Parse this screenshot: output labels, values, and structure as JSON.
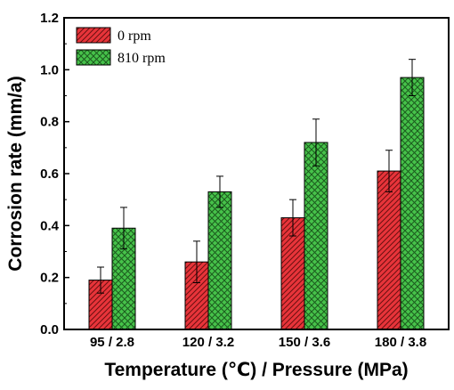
{
  "chart_data": {
    "type": "bar",
    "title": "",
    "xlabel": "Temperature (℃) / Pressure (MPa)",
    "ylabel": "Corrosion rate (mm/a)",
    "categories": [
      "95 / 2.8",
      "120 / 3.2",
      "150 / 3.6",
      "180 / 3.8"
    ],
    "ylim": [
      0.0,
      1.2
    ],
    "yticks": [
      "0.0",
      "0.2",
      "0.4",
      "0.6",
      "0.8",
      "1.0",
      "1.2"
    ],
    "series": [
      {
        "name": "0 rpm",
        "color": "#e8343a",
        "pattern": "diagonal-hatch",
        "values": [
          0.19,
          0.26,
          0.43,
          0.61
        ],
        "error": [
          0.05,
          0.08,
          0.07,
          0.08
        ]
      },
      {
        "name": "810 rpm",
        "color": "#46c24a",
        "pattern": "cross-hatch",
        "values": [
          0.39,
          0.53,
          0.72,
          0.97
        ],
        "error": [
          0.08,
          0.06,
          0.09,
          0.07
        ]
      }
    ],
    "legend_position": "top-left",
    "grid": false
  }
}
